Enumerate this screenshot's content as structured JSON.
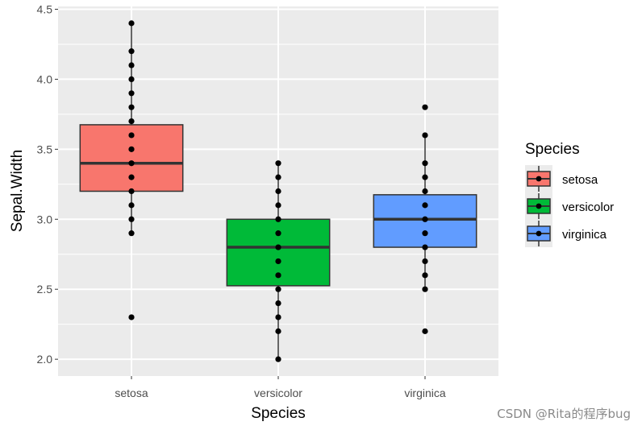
{
  "chart_data": {
    "type": "boxplot",
    "xlabel": "Species",
    "ylabel": "Sepal.Width",
    "categories": [
      "setosa",
      "versicolor",
      "virginica"
    ],
    "ylim": [
      1.88,
      4.52
    ],
    "yticks": [
      2.0,
      2.5,
      3.0,
      3.5,
      4.0,
      4.5
    ],
    "ytick_labels": [
      "2.0",
      "2.5",
      "3.0",
      "3.5",
      "4.0",
      "4.5"
    ],
    "grid": true,
    "legend": {
      "title": "Species",
      "position": "right",
      "entries": [
        "setosa",
        "versicolor",
        "virginica"
      ]
    },
    "boxes": [
      {
        "category": "setosa",
        "color": "#F8766D",
        "min": 2.9,
        "q1": 3.2,
        "median": 3.4,
        "q3": 3.675,
        "max": 4.4,
        "outliers": [
          2.3
        ],
        "points": [
          2.3,
          2.9,
          3.0,
          3.1,
          3.2,
          3.3,
          3.4,
          3.5,
          3.6,
          3.7,
          3.8,
          3.9,
          4.0,
          4.1,
          4.2,
          4.4
        ]
      },
      {
        "category": "versicolor",
        "color": "#00BA38",
        "min": 2.0,
        "q1": 2.525,
        "median": 2.8,
        "q3": 3.0,
        "max": 3.4,
        "outliers": [],
        "points": [
          2.0,
          2.2,
          2.3,
          2.4,
          2.5,
          2.6,
          2.7,
          2.8,
          2.9,
          3.0,
          3.1,
          3.2,
          3.3,
          3.4
        ]
      },
      {
        "category": "virginica",
        "color": "#619CFF",
        "min": 2.5,
        "q1": 2.8,
        "median": 3.0,
        "q3": 3.175,
        "max": 3.6,
        "outliers": [
          2.2,
          3.8
        ],
        "points": [
          2.2,
          2.5,
          2.6,
          2.7,
          2.8,
          2.9,
          3.0,
          3.1,
          3.2,
          3.3,
          3.4,
          3.6,
          3.8
        ]
      }
    ]
  },
  "watermark": "CSDN @Rita的程序bug"
}
